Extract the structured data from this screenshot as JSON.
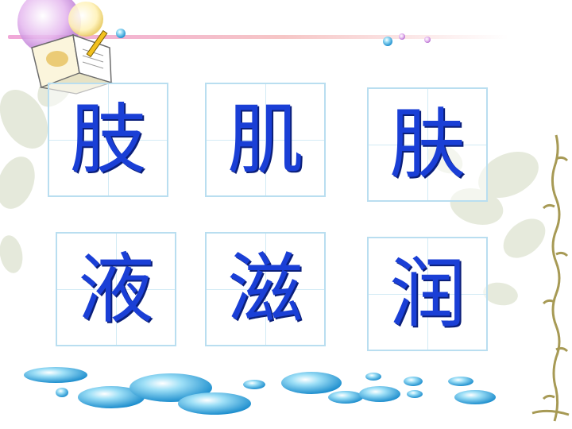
{
  "slide": {
    "characters": [
      {
        "id": "c1",
        "char": "肢"
      },
      {
        "id": "c2",
        "char": "肌"
      },
      {
        "id": "c3",
        "char": "肤"
      },
      {
        "id": "c4",
        "char": "液"
      },
      {
        "id": "c5",
        "char": "滋"
      },
      {
        "id": "c6",
        "char": "润"
      }
    ]
  },
  "colors": {
    "character": "#1a3fd6",
    "grid_border": "#b9def0",
    "bubble": "#3aaee0"
  },
  "icons": [
    "book-pencil-icon",
    "bubble-decoration",
    "leaf-decoration",
    "vine-decoration"
  ]
}
